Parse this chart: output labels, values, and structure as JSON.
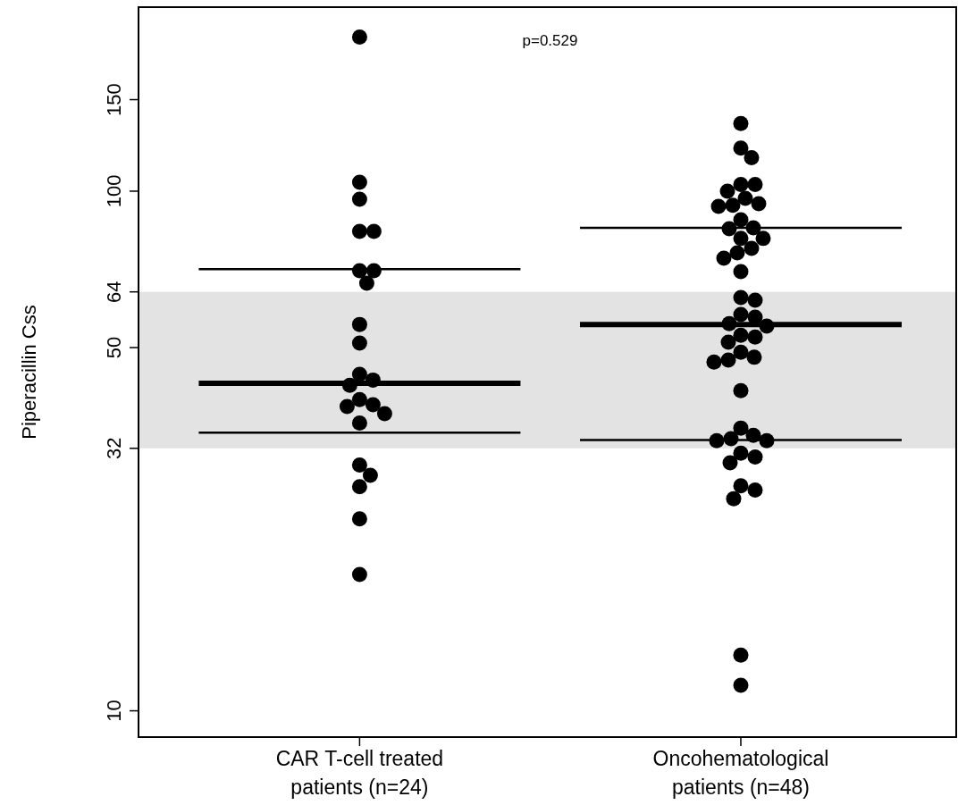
{
  "chart_data": {
    "type": "scatter",
    "ylabel": "Piperacillin Css",
    "log": true,
    "marker": "circle",
    "grid": false,
    "categories": [
      "CAR T-cell treated\npatients (n=24)",
      "Oncohematological\npatients (n=48)"
    ],
    "ylim": [
      8.9,
      226
    ],
    "yticks": [
      10,
      32,
      50,
      64,
      100,
      150
    ],
    "bands": [
      {
        "axis": "y",
        "from": 32,
        "to": 64,
        "color": "#e3e3e3"
      }
    ],
    "annotations": [
      "p=0.529"
    ],
    "series": [
      {
        "color": "#000000",
        "x": [
          "CAR T-cell treated\npatients (n=24)",
          "CAR T-cell treated\npatients (n=24)",
          "CAR T-cell treated\npatients (n=24)",
          "CAR T-cell treated\npatients (n=24)",
          "CAR T-cell treated\npatients (n=24)",
          "CAR T-cell treated\npatients (n=24)",
          "CAR T-cell treated\npatients (n=24)",
          "CAR T-cell treated\npatients (n=24)",
          "CAR T-cell treated\npatients (n=24)",
          "CAR T-cell treated\npatients (n=24)",
          "CAR T-cell treated\npatients (n=24)",
          "CAR T-cell treated\npatients (n=24)",
          "CAR T-cell treated\npatients (n=24)",
          "CAR T-cell treated\npatients (n=24)",
          "CAR T-cell treated\npatients (n=24)",
          "CAR T-cell treated\npatients (n=24)",
          "CAR T-cell treated\npatients (n=24)",
          "CAR T-cell treated\npatients (n=24)",
          "CAR T-cell treated\npatients (n=24)",
          "CAR T-cell treated\npatients (n=24)",
          "CAR T-cell treated\npatients (n=24)",
          "CAR T-cell treated\npatients (n=24)",
          "CAR T-cell treated\npatients (n=24)",
          "Oncohematological\npatients (n=48)",
          "Oncohematological\npatients (n=48)",
          "Oncohematological\npatients (n=48)",
          "Oncohematological\npatients (n=48)",
          "Oncohematological\npatients (n=48)",
          "Oncohematological\npatients (n=48)",
          "Oncohematological\npatients (n=48)",
          "Oncohematological\npatients (n=48)",
          "Oncohematological\npatients (n=48)",
          "Oncohematological\npatients (n=48)",
          "Oncohematological\npatients (n=48)",
          "Oncohematological\npatients (n=48)",
          "Oncohematological\npatients (n=48)",
          "Oncohematological\npatients (n=48)",
          "Oncohematological\npatients (n=48)",
          "Oncohematological\npatients (n=48)",
          "Oncohematological\npatients (n=48)",
          "Oncohematological\npatients (n=48)",
          "Oncohematological\npatients (n=48)",
          "Oncohematological\npatients (n=48)",
          "Oncohematological\npatients (n=48)",
          "Oncohematological\npatients (n=48)",
          "Oncohematological\npatients (n=48)",
          "Oncohematological\npatients (n=48)",
          "Oncohematological\npatients (n=48)",
          "Oncohematological\npatients (n=48)",
          "Oncohematological\npatients (n=48)",
          "Oncohematological\npatients (n=48)",
          "Oncohematological\npatients (n=48)",
          "Oncohematological\npatients (n=48)",
          "Oncohematological\npatients (n=48)",
          "Oncohematological\npatients (n=48)",
          "Oncohematological\npatients (n=48)",
          "Oncohematological\npatients (n=48)",
          "Oncohematological\npatients (n=48)",
          "Oncohematological\npatients (n=48)",
          "Oncohematological\npatients (n=48)",
          "Oncohematological\npatients (n=48)",
          "Oncohematological\npatients (n=48)",
          "Oncohematological\npatients (n=48)",
          "Oncohematological\npatients (n=48)",
          "Oncohematological\npatients (n=48)",
          "Oncohematological\npatients (n=48)",
          "Oncohematological\npatients (n=48)",
          "Oncohematological\npatients (n=48)",
          "Oncohematological\npatients (n=48)"
        ],
        "values": [
          198,
          104,
          96.5,
          83.7,
          83.7,
          70.3,
          70.3,
          66.5,
          55.4,
          51,
          44.4,
          43.3,
          42.3,
          39.7,
          38.8,
          38.5,
          37.3,
          35.8,
          29.7,
          28.4,
          27,
          23.4,
          18.3,
          135,
          121,
          116,
          103,
          103,
          100,
          96.9,
          94.6,
          93.9,
          93.5,
          88.1,
          85,
          84.7,
          81.1,
          81.1,
          77.6,
          76.1,
          74.3,
          70,
          62.4,
          61.7,
          57.9,
          57.2,
          55.6,
          55,
          52.8,
          52.4,
          51.2,
          49,
          47.9,
          47.3,
          46.9,
          41.3,
          35,
          33.9,
          33.4,
          33.1,
          33.1,
          31.3,
          30.8,
          30,
          27.1,
          26.6,
          25.6,
          12.8,
          11.2
        ]
      },
      {
        "type": "box",
        "color": "#000000",
        "boxes": [
          {
            "q1": 34.3,
            "median": 42.7,
            "q3": 70.8
          },
          {
            "q1": 33.2,
            "median": 55.4,
            "q3": 85
          }
        ]
      }
    ]
  }
}
